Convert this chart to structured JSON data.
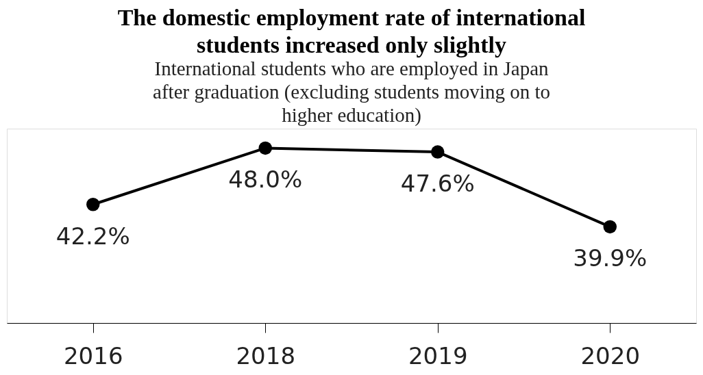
{
  "chart_data": {
    "type": "line",
    "title": "The domestic employment rate of international students increased only slightly",
    "subtitle": "International students who are employed in Japan after graduation (excluding  students moving on to higher education)",
    "categories": [
      "2016",
      "2018",
      "2019",
      "2020"
    ],
    "series": [
      {
        "color": "#000000",
        "values": [
          42.2,
          48.0,
          47.6,
          39.9
        ],
        "value_labels": [
          "42.2%",
          "48.0%",
          "47.6%",
          "39.9%"
        ]
      }
    ],
    "ylim": [
      30,
      50
    ],
    "marker": "circle",
    "line_style": "solid",
    "grid": false,
    "legend": false
  }
}
